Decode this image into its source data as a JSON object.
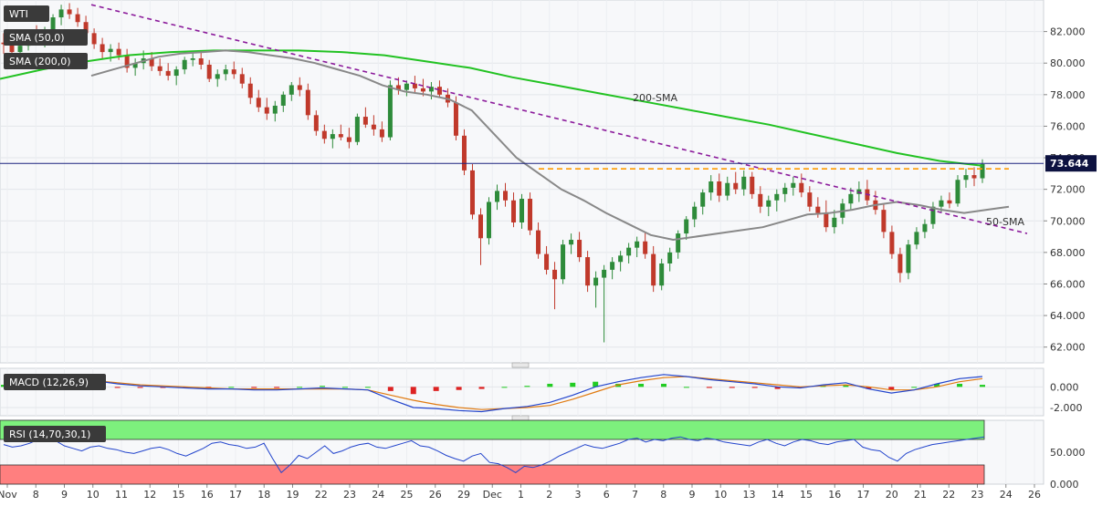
{
  "chart_data": [
    {
      "type": "candlestick",
      "title": "WTI",
      "legend": [
        "WTI",
        "SMA (50,0)",
        "SMA (200,0)"
      ],
      "ylim": [
        61.0,
        84.0
      ],
      "y_ticks": [
        "82.000",
        "80.000",
        "78.000",
        "76.000",
        "74.000",
        "72.000",
        "70.000",
        "68.000",
        "66.000",
        "64.000",
        "62.000"
      ],
      "last_price": "73.644",
      "annotations": [
        "200-SMA",
        "50-SMA"
      ],
      "x_ticks": [
        "Nov",
        "8",
        "9",
        "10",
        "11",
        "12",
        "15",
        "16",
        "17",
        "18",
        "19",
        "22",
        "23",
        "24",
        "25",
        "26",
        "29",
        "Dec",
        "1",
        "2",
        "3",
        "6",
        "7",
        "8",
        "9",
        "10",
        "13",
        "14",
        "15",
        "16",
        "17",
        "20",
        "21",
        "22",
        "23",
        "24",
        "26"
      ],
      "colors": {
        "up": "#2e8b3a",
        "down": "#c0392b",
        "sma50": "#888888",
        "sma200": "#22c222",
        "trendline": "#8b1a9b",
        "resistance": "#ff9900",
        "price_line": "#1a237e"
      },
      "candles": [
        [
          81.3,
          81.9,
          80.6,
          81.2
        ],
        [
          81.2,
          81.6,
          80.4,
          80.7
        ],
        [
          80.7,
          81.4,
          80.2,
          81.1
        ],
        [
          81.1,
          82.0,
          80.8,
          81.8
        ],
        [
          81.8,
          82.4,
          81.2,
          81.4
        ],
        [
          81.4,
          82.3,
          81.0,
          82.0
        ],
        [
          82.0,
          83.1,
          81.7,
          82.9
        ],
        [
          82.9,
          83.7,
          82.4,
          83.4
        ],
        [
          83.4,
          83.8,
          82.8,
          83.1
        ],
        [
          83.1,
          83.5,
          82.3,
          82.6
        ],
        [
          82.6,
          83.0,
          81.7,
          81.9
        ],
        [
          81.9,
          82.2,
          80.9,
          81.2
        ],
        [
          81.2,
          81.6,
          80.3,
          80.7
        ],
        [
          80.7,
          81.2,
          80.1,
          80.9
        ],
        [
          80.9,
          81.3,
          80.2,
          80.5
        ],
        [
          80.5,
          80.9,
          79.4,
          79.7
        ],
        [
          79.7,
          80.3,
          79.2,
          80.0
        ],
        [
          80.0,
          80.8,
          79.6,
          80.3
        ],
        [
          80.3,
          80.7,
          79.5,
          79.8
        ],
        [
          79.8,
          80.3,
          79.2,
          79.5
        ],
        [
          79.5,
          80.0,
          78.9,
          79.2
        ],
        [
          79.2,
          79.8,
          78.6,
          79.6
        ],
        [
          79.6,
          80.4,
          79.3,
          80.2
        ],
        [
          80.2,
          80.7,
          79.8,
          80.3
        ],
        [
          80.3,
          80.8,
          79.6,
          79.9
        ],
        [
          79.9,
          80.2,
          78.8,
          79.0
        ],
        [
          79.0,
          79.6,
          78.5,
          79.3
        ],
        [
          79.3,
          79.9,
          78.9,
          79.6
        ],
        [
          79.6,
          80.1,
          79.0,
          79.3
        ],
        [
          79.3,
          79.7,
          78.4,
          78.7
        ],
        [
          78.7,
          79.1,
          77.4,
          77.8
        ],
        [
          77.8,
          78.3,
          76.9,
          77.2
        ],
        [
          77.2,
          77.8,
          76.4,
          76.8
        ],
        [
          76.8,
          77.6,
          76.3,
          77.3
        ],
        [
          77.3,
          78.2,
          76.9,
          78.0
        ],
        [
          78.0,
          78.8,
          77.6,
          78.6
        ],
        [
          78.6,
          79.1,
          77.9,
          78.3
        ],
        [
          78.3,
          78.7,
          76.4,
          76.7
        ],
        [
          76.7,
          77.0,
          75.4,
          75.7
        ],
        [
          75.7,
          76.1,
          74.9,
          75.2
        ],
        [
          75.2,
          75.8,
          74.6,
          75.5
        ],
        [
          75.5,
          76.1,
          75.1,
          75.3
        ],
        [
          75.3,
          75.9,
          74.6,
          75.0
        ],
        [
          75.0,
          76.8,
          74.8,
          76.6
        ],
        [
          76.6,
          77.2,
          75.9,
          76.1
        ],
        [
          76.1,
          76.7,
          75.4,
          75.8
        ],
        [
          75.8,
          76.3,
          75.0,
          75.3
        ],
        [
          75.3,
          78.9,
          75.1,
          78.6
        ],
        [
          78.6,
          79.1,
          78.0,
          78.3
        ],
        [
          78.3,
          78.9,
          77.9,
          78.7
        ],
        [
          78.7,
          79.2,
          78.1,
          78.4
        ],
        [
          78.4,
          79.0,
          77.9,
          78.2
        ],
        [
          78.2,
          78.8,
          77.7,
          78.5
        ],
        [
          78.5,
          78.9,
          77.8,
          78.0
        ],
        [
          78.0,
          78.4,
          77.2,
          77.5
        ],
        [
          77.5,
          77.9,
          75.1,
          75.4
        ],
        [
          75.4,
          75.8,
          72.9,
          73.2
        ],
        [
          73.2,
          73.6,
          70.1,
          70.4
        ],
        [
          70.4,
          70.8,
          67.2,
          68.9
        ],
        [
          68.9,
          71.5,
          68.5,
          71.2
        ],
        [
          71.2,
          72.3,
          70.7,
          71.9
        ],
        [
          71.9,
          72.4,
          70.9,
          71.3
        ],
        [
          71.3,
          71.8,
          69.6,
          69.9
        ],
        [
          69.9,
          71.7,
          69.5,
          71.4
        ],
        [
          71.4,
          71.8,
          69.1,
          69.4
        ],
        [
          69.4,
          69.9,
          67.6,
          67.9
        ],
        [
          67.9,
          68.4,
          66.6,
          66.9
        ],
        [
          66.9,
          67.4,
          64.4,
          66.3
        ],
        [
          66.3,
          68.8,
          66.0,
          68.5
        ],
        [
          68.5,
          69.2,
          67.9,
          68.8
        ],
        [
          68.8,
          69.3,
          67.4,
          67.7
        ],
        [
          67.7,
          68.1,
          65.5,
          65.9
        ],
        [
          65.9,
          66.8,
          64.5,
          66.4
        ],
        [
          66.4,
          67.2,
          62.3,
          66.9
        ],
        [
          66.9,
          67.7,
          66.3,
          67.4
        ],
        [
          67.4,
          68.1,
          66.8,
          67.8
        ],
        [
          67.8,
          68.6,
          67.3,
          68.3
        ],
        [
          68.3,
          69.0,
          67.7,
          68.7
        ],
        [
          68.7,
          69.3,
          67.6,
          67.9
        ],
        [
          67.9,
          68.4,
          65.5,
          65.9
        ],
        [
          65.9,
          67.6,
          65.6,
          67.3
        ],
        [
          67.3,
          68.3,
          66.8,
          68.0
        ],
        [
          68.0,
          69.4,
          67.6,
          69.2
        ],
        [
          69.2,
          70.3,
          68.8,
          70.1
        ],
        [
          70.1,
          71.2,
          69.6,
          70.9
        ],
        [
          70.9,
          72.0,
          70.4,
          71.8
        ],
        [
          71.8,
          72.9,
          71.3,
          72.5
        ],
        [
          72.5,
          73.0,
          71.2,
          71.6
        ],
        [
          71.6,
          72.8,
          71.3,
          72.4
        ],
        [
          72.4,
          73.1,
          71.7,
          72.0
        ],
        [
          72.0,
          73.2,
          71.6,
          72.8
        ],
        [
          72.8,
          73.1,
          71.4,
          71.7
        ],
        [
          71.7,
          72.2,
          70.5,
          70.9
        ],
        [
          70.9,
          71.6,
          70.3,
          71.3
        ],
        [
          71.3,
          72.0,
          70.6,
          71.7
        ],
        [
          71.7,
          72.4,
          71.2,
          72.1
        ],
        [
          72.1,
          72.8,
          71.6,
          72.4
        ],
        [
          72.4,
          73.0,
          71.5,
          71.8
        ],
        [
          71.8,
          72.2,
          70.6,
          70.9
        ],
        [
          70.9,
          71.5,
          70.2,
          70.5
        ],
        [
          70.5,
          71.3,
          69.3,
          69.6
        ],
        [
          69.6,
          70.7,
          69.2,
          70.2
        ],
        [
          70.2,
          71.4,
          69.8,
          71.1
        ],
        [
          71.1,
          72.1,
          70.7,
          71.7
        ],
        [
          71.7,
          72.5,
          71.2,
          72.0
        ],
        [
          72.0,
          72.6,
          71.0,
          71.3
        ],
        [
          71.3,
          71.9,
          70.4,
          70.7
        ],
        [
          70.7,
          71.1,
          68.9,
          69.3
        ],
        [
          69.3,
          69.7,
          67.6,
          67.9
        ],
        [
          67.9,
          68.3,
          66.1,
          66.7
        ],
        [
          66.7,
          68.8,
          66.3,
          68.5
        ],
        [
          68.5,
          69.6,
          68.2,
          69.3
        ],
        [
          69.3,
          70.1,
          68.9,
          69.8
        ],
        [
          69.8,
          71.2,
          69.5,
          70.9
        ],
        [
          70.9,
          71.6,
          70.5,
          71.3
        ],
        [
          71.3,
          71.8,
          70.8,
          71.1
        ],
        [
          71.1,
          72.9,
          70.9,
          72.6
        ],
        [
          72.6,
          73.3,
          72.1,
          72.9
        ],
        [
          72.9,
          73.4,
          72.2,
          72.7
        ],
        [
          72.7,
          73.9,
          72.4,
          73.6
        ]
      ],
      "sma50": [
        79.2,
        79.6,
        80.0,
        80.4,
        80.6,
        80.7,
        80.8,
        80.7,
        80.5,
        80.3,
        80.0,
        79.6,
        79.2,
        78.6,
        78.2,
        78.0,
        77.7,
        77.0,
        75.5,
        74.0,
        73.0,
        72.0,
        71.3,
        70.5,
        69.8,
        69.1,
        68.8,
        69.0,
        69.2,
        69.4,
        69.6,
        70.0,
        70.4,
        70.5,
        70.7,
        71.0,
        71.2,
        71.0,
        70.7,
        70.5,
        70.7,
        70.9
      ],
      "sma200": [
        79.0,
        79.6,
        80.1,
        80.5,
        80.7,
        80.8,
        80.8,
        80.8,
        80.7,
        80.5,
        80.1,
        79.7,
        79.1,
        78.6,
        78.1,
        77.6,
        77.1,
        76.6,
        76.1,
        75.5,
        74.9,
        74.3,
        73.8,
        73.5
      ],
      "trendline_from_to": [
        83.7,
        69.2
      ],
      "resistance_level": 73.3
    },
    {
      "type": "line",
      "title": "MACD (12,26,9)",
      "y_ticks": [
        "0.000",
        "-2.000"
      ],
      "ylim": [
        -2.8,
        1.8
      ],
      "macd": [
        0.4,
        0.6,
        0.9,
        1.0,
        0.6,
        0.3,
        0.1,
        0.0,
        -0.1,
        -0.2,
        -0.2,
        -0.3,
        -0.3,
        -0.2,
        -0.1,
        -0.2,
        -0.3,
        -1.2,
        -2.0,
        -2.1,
        -2.3,
        -2.4,
        -2.1,
        -1.9,
        -1.5,
        -0.8,
        0.0,
        0.5,
        0.9,
        1.2,
        1.0,
        0.7,
        0.5,
        0.3,
        0.0,
        -0.1,
        0.2,
        0.4,
        -0.2,
        -0.6,
        -0.3,
        0.3,
        0.8,
        1.0
      ],
      "signal": [
        0.2,
        0.4,
        0.6,
        0.7,
        0.6,
        0.4,
        0.2,
        0.1,
        0.0,
        -0.1,
        -0.2,
        -0.2,
        -0.2,
        -0.2,
        -0.2,
        -0.2,
        -0.3,
        -0.8,
        -1.3,
        -1.7,
        -2.0,
        -2.2,
        -2.1,
        -2.0,
        -1.8,
        -1.2,
        -0.5,
        0.2,
        0.6,
        0.9,
        1.0,
        0.8,
        0.6,
        0.4,
        0.2,
        0.0,
        0.1,
        0.2,
        0.0,
        -0.3,
        -0.3,
        0.0,
        0.5,
        0.8
      ],
      "colors": {
        "macd": "#2244cc",
        "signal": "#e07a10",
        "hist_up": "#22cc22",
        "hist_down": "#dd2222"
      }
    },
    {
      "type": "line",
      "title": "RSI (14,70,30,1)",
      "y_ticks": [
        "50.000",
        "0.000"
      ],
      "ylim": [
        0,
        100
      ],
      "overbought": 70,
      "oversold": 30,
      "rsi": [
        62,
        58,
        60,
        64,
        70,
        72,
        68,
        60,
        56,
        52,
        58,
        60,
        56,
        54,
        50,
        48,
        52,
        56,
        58,
        54,
        48,
        44,
        50,
        56,
        64,
        66,
        62,
        60,
        56,
        58,
        64,
        40,
        18,
        30,
        45,
        40,
        50,
        60,
        48,
        52,
        58,
        62,
        64,
        58,
        56,
        60,
        64,
        68,
        60,
        58,
        52,
        45,
        40,
        36,
        44,
        48,
        34,
        32,
        26,
        18,
        28,
        26,
        30,
        36,
        44,
        50,
        56,
        62,
        58,
        56,
        60,
        64,
        70,
        72,
        66,
        70,
        68,
        72,
        74,
        70,
        68,
        72,
        70,
        66,
        64,
        62,
        60,
        66,
        70,
        64,
        60,
        66,
        70,
        68,
        64,
        62,
        66,
        68,
        70,
        58,
        54,
        52,
        42,
        36,
        48,
        54,
        58,
        62,
        64,
        66,
        68,
        70,
        72,
        74
      ]
    }
  ]
}
